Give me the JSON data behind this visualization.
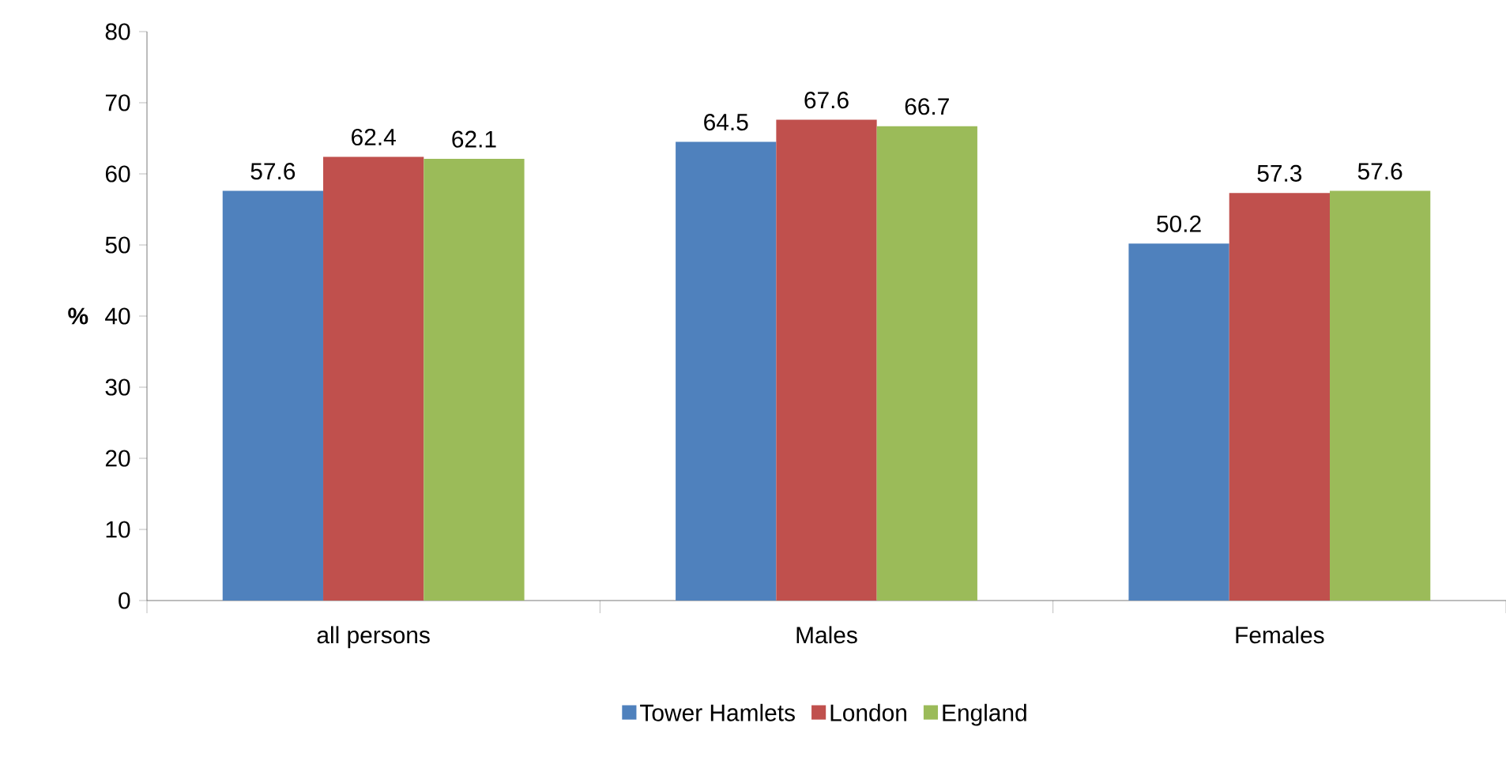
{
  "chart_data": {
    "type": "bar",
    "ylabel": "%",
    "categories": [
      "all persons",
      "Males",
      "Females"
    ],
    "series": [
      {
        "name": "Tower Hamlets",
        "color": "#4f81bd",
        "values": [
          57.6,
          64.5,
          50.2
        ]
      },
      {
        "name": "London",
        "color": "#c0504d",
        "values": [
          62.4,
          67.6,
          57.3
        ]
      },
      {
        "name": "England",
        "color": "#9bbb59",
        "values": [
          62.1,
          66.7,
          57.6
        ]
      }
    ],
    "ylim": [
      0,
      80
    ],
    "yticks": [
      0,
      10,
      20,
      30,
      40,
      50,
      60,
      70,
      80
    ],
    "data_labels": true,
    "legend": "bottom",
    "grid": false
  }
}
